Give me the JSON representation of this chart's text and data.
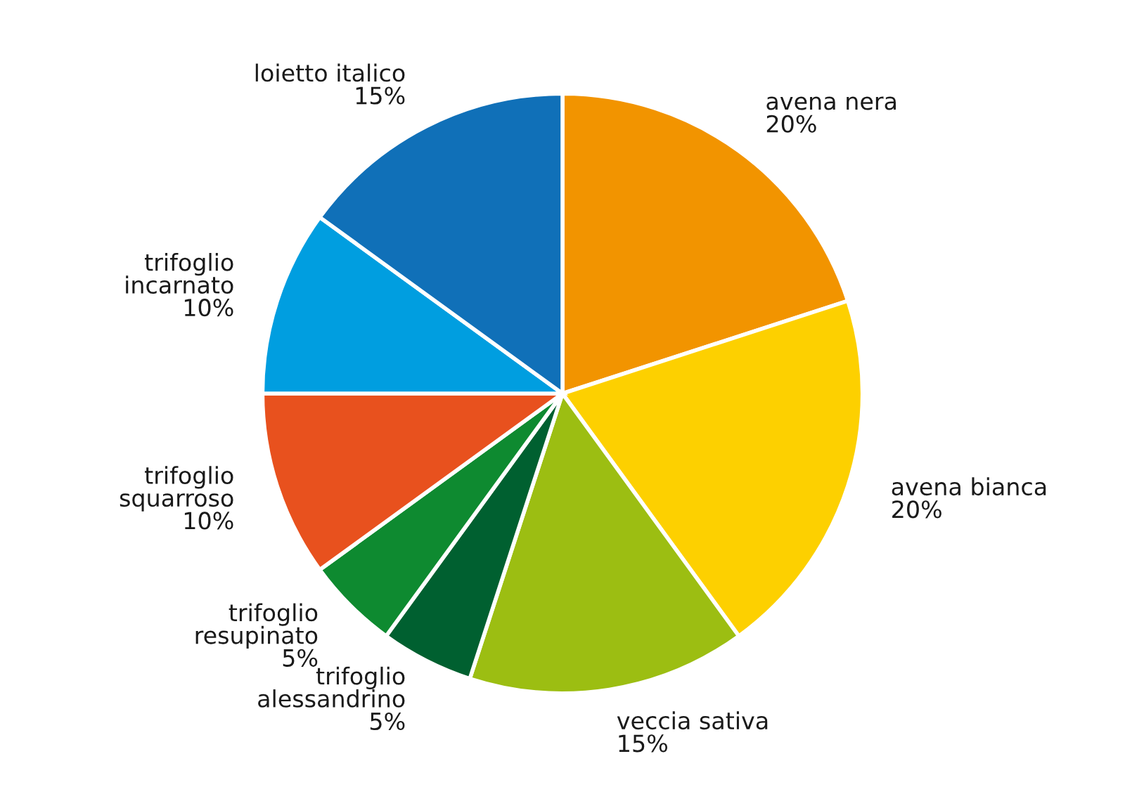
{
  "chart_data": {
    "type": "pie",
    "categories": [
      "avena nera",
      "avena bianca",
      "veccia sativa",
      "trifoglio alessandrino",
      "trifoglio resupinato",
      "trifoglio squarroso",
      "trifoglio incarnato",
      "loietto italico"
    ],
    "values": [
      20,
      20,
      15,
      5,
      5,
      10,
      10,
      15
    ],
    "value_labels": [
      "20%",
      "20%",
      "15%",
      "5%",
      "5%",
      "10%",
      "10%",
      "15%"
    ],
    "colors": [
      "#f29400",
      "#fdd000",
      "#9cbe12",
      "#006030",
      "#0e8a30",
      "#e8511e",
      "#009ee0",
      "#1070b8"
    ],
    "legend": false
  }
}
